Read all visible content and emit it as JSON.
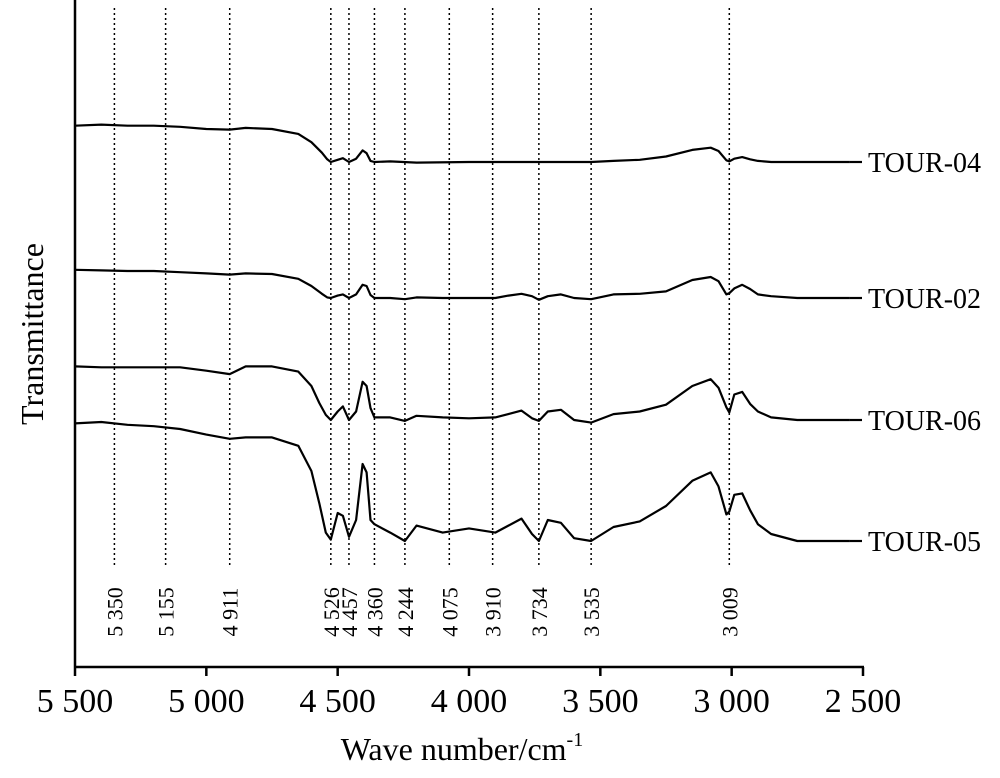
{
  "chart_data": {
    "type": "line",
    "title": "",
    "xlabel": "Wave number/cm",
    "xlabel_superscript": "-1",
    "ylabel": "Transmittance",
    "xlim": [
      5500,
      2500
    ],
    "x_reversed": true,
    "x_ticks": [
      5500,
      5000,
      4500,
      4000,
      3500,
      3000,
      2500
    ],
    "x_tick_labels": [
      "5 500",
      "5 000",
      "4 500",
      "4 000",
      "3 500",
      "3 000",
      "2 500"
    ],
    "y_ticks": [],
    "grid": false,
    "reference_lines": [
      {
        "x": 5350,
        "label": "5 350"
      },
      {
        "x": 5155,
        "label": "5 155"
      },
      {
        "x": 4911,
        "label": "4 911"
      },
      {
        "x": 4526,
        "label": "4 526"
      },
      {
        "x": 4457,
        "label": "4 457"
      },
      {
        "x": 4360,
        "label": "4 360"
      },
      {
        "x": 4244,
        "label": "4 244"
      },
      {
        "x": 4075,
        "label": "4 075"
      },
      {
        "x": 3910,
        "label": "3 910"
      },
      {
        "x": 3734,
        "label": "3 734"
      },
      {
        "x": 3535,
        "label": "3 535"
      },
      {
        "x": 3009,
        "label": "3 009"
      }
    ],
    "series": [
      {
        "name": "TOUR-04",
        "points": [
          [
            5500,
            0.66
          ],
          [
            5400,
            0.68
          ],
          [
            5300,
            0.66
          ],
          [
            5200,
            0.66
          ],
          [
            5100,
            0.64
          ],
          [
            5000,
            0.6
          ],
          [
            4911,
            0.59
          ],
          [
            4850,
            0.62
          ],
          [
            4750,
            0.6
          ],
          [
            4650,
            0.51
          ],
          [
            4600,
            0.36
          ],
          [
            4560,
            0.17
          ],
          [
            4540,
            0.05
          ],
          [
            4526,
            0.0
          ],
          [
            4500,
            0.04
          ],
          [
            4480,
            0.07
          ],
          [
            4457,
            0.0
          ],
          [
            4430,
            0.06
          ],
          [
            4405,
            0.21
          ],
          [
            4390,
            0.16
          ],
          [
            4375,
            0.02
          ],
          [
            4360,
            0.0
          ],
          [
            4300,
            0.01
          ],
          [
            4200,
            -0.01
          ],
          [
            4000,
            0.0
          ],
          [
            3800,
            0.0
          ],
          [
            3600,
            0.0
          ],
          [
            3535,
            0.0
          ],
          [
            3450,
            0.02
          ],
          [
            3350,
            0.04
          ],
          [
            3250,
            0.1
          ],
          [
            3150,
            0.22
          ],
          [
            3080,
            0.26
          ],
          [
            3050,
            0.2
          ],
          [
            3020,
            0.03
          ],
          [
            3009,
            0.01
          ],
          [
            2990,
            0.06
          ],
          [
            2960,
            0.09
          ],
          [
            2930,
            0.05
          ],
          [
            2900,
            0.02
          ],
          [
            2850,
            0.0
          ],
          [
            2700,
            0.0
          ],
          [
            2600,
            0.0
          ],
          [
            2550,
            0.0
          ]
        ]
      },
      {
        "name": "TOUR-02",
        "points": [
          [
            5500,
            0.47
          ],
          [
            5400,
            0.46
          ],
          [
            5300,
            0.45
          ],
          [
            5200,
            0.45
          ],
          [
            5100,
            0.43
          ],
          [
            5000,
            0.41
          ],
          [
            4911,
            0.39
          ],
          [
            4850,
            0.41
          ],
          [
            4750,
            0.4
          ],
          [
            4650,
            0.32
          ],
          [
            4600,
            0.2
          ],
          [
            4560,
            0.07
          ],
          [
            4540,
            0.01
          ],
          [
            4526,
            0.0
          ],
          [
            4500,
            0.04
          ],
          [
            4480,
            0.06
          ],
          [
            4457,
            0.0
          ],
          [
            4430,
            0.06
          ],
          [
            4405,
            0.22
          ],
          [
            4390,
            0.2
          ],
          [
            4375,
            0.05
          ],
          [
            4360,
            0.0
          ],
          [
            4300,
            0.0
          ],
          [
            4244,
            -0.02
          ],
          [
            4200,
            0.01
          ],
          [
            4100,
            0.0
          ],
          [
            4000,
            0.0
          ],
          [
            3900,
            0.0
          ],
          [
            3850,
            0.04
          ],
          [
            3800,
            0.07
          ],
          [
            3760,
            0.03
          ],
          [
            3734,
            -0.03
          ],
          [
            3700,
            0.03
          ],
          [
            3650,
            0.06
          ],
          [
            3600,
            0.0
          ],
          [
            3535,
            -0.02
          ],
          [
            3450,
            0.06
          ],
          [
            3350,
            0.07
          ],
          [
            3250,
            0.11
          ],
          [
            3150,
            0.3
          ],
          [
            3080,
            0.35
          ],
          [
            3050,
            0.28
          ],
          [
            3020,
            0.06
          ],
          [
            3009,
            0.08
          ],
          [
            2990,
            0.16
          ],
          [
            2960,
            0.22
          ],
          [
            2930,
            0.15
          ],
          [
            2900,
            0.06
          ],
          [
            2850,
            0.03
          ],
          [
            2750,
            0.0
          ],
          [
            2700,
            0.0
          ],
          [
            2550,
            0.0
          ]
        ]
      },
      {
        "name": "TOUR-06",
        "points": [
          [
            5500,
            0.63
          ],
          [
            5400,
            0.62
          ],
          [
            5300,
            0.62
          ],
          [
            5200,
            0.62
          ],
          [
            5100,
            0.62
          ],
          [
            5000,
            0.58
          ],
          [
            4911,
            0.54
          ],
          [
            4850,
            0.63
          ],
          [
            4750,
            0.63
          ],
          [
            4650,
            0.57
          ],
          [
            4600,
            0.4
          ],
          [
            4570,
            0.2
          ],
          [
            4545,
            0.06
          ],
          [
            4526,
            0.0
          ],
          [
            4500,
            0.1
          ],
          [
            4480,
            0.16
          ],
          [
            4457,
            0.0
          ],
          [
            4430,
            0.1
          ],
          [
            4405,
            0.45
          ],
          [
            4390,
            0.4
          ],
          [
            4375,
            0.14
          ],
          [
            4360,
            0.03
          ],
          [
            4300,
            0.03
          ],
          [
            4244,
            -0.01
          ],
          [
            4200,
            0.05
          ],
          [
            4100,
            0.03
          ],
          [
            4000,
            0.02
          ],
          [
            3900,
            0.03
          ],
          [
            3850,
            0.07
          ],
          [
            3800,
            0.11
          ],
          [
            3760,
            0.02
          ],
          [
            3734,
            -0.01
          ],
          [
            3700,
            0.1
          ],
          [
            3650,
            0.12
          ],
          [
            3600,
            0.0
          ],
          [
            3535,
            -0.03
          ],
          [
            3450,
            0.07
          ],
          [
            3350,
            0.1
          ],
          [
            3250,
            0.18
          ],
          [
            3150,
            0.4
          ],
          [
            3080,
            0.48
          ],
          [
            3050,
            0.38
          ],
          [
            3020,
            0.15
          ],
          [
            3009,
            0.09
          ],
          [
            2990,
            0.3
          ],
          [
            2960,
            0.33
          ],
          [
            2930,
            0.19
          ],
          [
            2900,
            0.1
          ],
          [
            2850,
            0.03
          ],
          [
            2750,
            0.0
          ],
          [
            2700,
            0.0
          ],
          [
            2550,
            0.0
          ]
        ]
      },
      {
        "name": "TOUR-05",
        "points": [
          [
            5500,
            0.84
          ],
          [
            5400,
            0.85
          ],
          [
            5300,
            0.83
          ],
          [
            5200,
            0.82
          ],
          [
            5100,
            0.8
          ],
          [
            5000,
            0.76
          ],
          [
            4911,
            0.73
          ],
          [
            4850,
            0.74
          ],
          [
            4750,
            0.74
          ],
          [
            4650,
            0.68
          ],
          [
            4600,
            0.5
          ],
          [
            4570,
            0.27
          ],
          [
            4545,
            0.06
          ],
          [
            4526,
            0.01
          ],
          [
            4500,
            0.2
          ],
          [
            4480,
            0.18
          ],
          [
            4457,
            0.03
          ],
          [
            4430,
            0.15
          ],
          [
            4405,
            0.55
          ],
          [
            4390,
            0.49
          ],
          [
            4375,
            0.15
          ],
          [
            4360,
            0.12
          ],
          [
            4300,
            0.06
          ],
          [
            4244,
            0.0
          ],
          [
            4200,
            0.11
          ],
          [
            4100,
            0.06
          ],
          [
            4000,
            0.09
          ],
          [
            3900,
            0.06
          ],
          [
            3850,
            0.11
          ],
          [
            3800,
            0.16
          ],
          [
            3760,
            0.05
          ],
          [
            3734,
            0.0
          ],
          [
            3700,
            0.15
          ],
          [
            3650,
            0.13
          ],
          [
            3600,
            0.02
          ],
          [
            3535,
            0.0
          ],
          [
            3450,
            0.1
          ],
          [
            3350,
            0.14
          ],
          [
            3250,
            0.25
          ],
          [
            3150,
            0.43
          ],
          [
            3080,
            0.49
          ],
          [
            3050,
            0.39
          ],
          [
            3020,
            0.19
          ],
          [
            3009,
            0.21
          ],
          [
            2990,
            0.33
          ],
          [
            2960,
            0.34
          ],
          [
            2930,
            0.22
          ],
          [
            2900,
            0.12
          ],
          [
            2850,
            0.05
          ],
          [
            2750,
            0.0
          ],
          [
            2700,
            0.0
          ],
          [
            2550,
            0.0
          ]
        ]
      }
    ]
  }
}
